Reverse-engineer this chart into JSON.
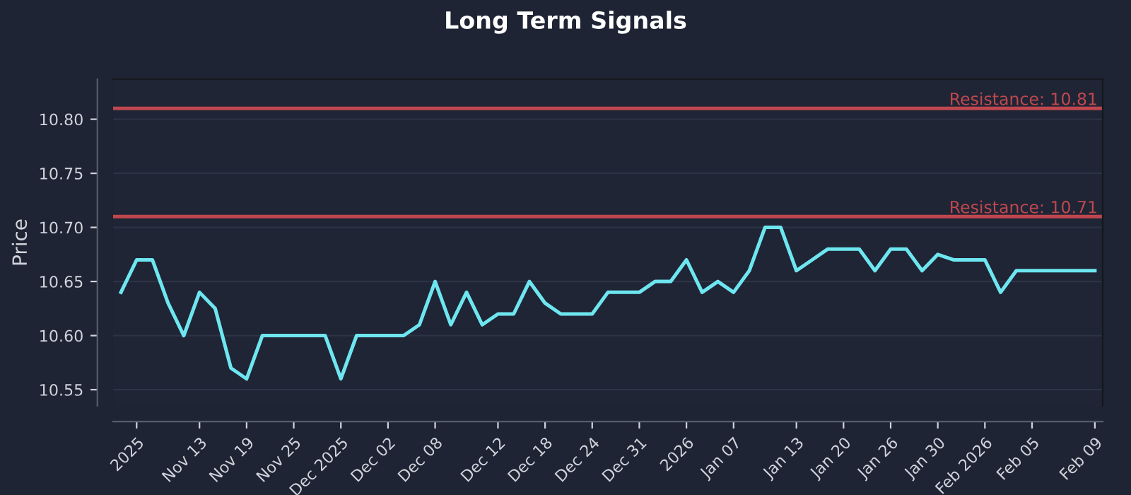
{
  "chart_data": {
    "type": "line",
    "title": "Long Term Signals",
    "ylabel": "Price",
    "categories": [
      null,
      "2025",
      null,
      null,
      null,
      "Nov 13",
      null,
      null,
      "Nov 19",
      null,
      null,
      "Nov 25",
      null,
      null,
      "Dec 2025",
      null,
      null,
      "Dec 02",
      null,
      null,
      "Dec 08",
      null,
      null,
      null,
      "Dec 12",
      null,
      null,
      "Dec 18",
      null,
      null,
      "Dec 24",
      null,
      null,
      "Dec 31",
      null,
      null,
      "2026",
      null,
      null,
      "Jan 07",
      null,
      null,
      null,
      "Jan 13",
      null,
      null,
      "Jan 20",
      null,
      null,
      "Jan 26",
      null,
      null,
      "Jan 30",
      null,
      null,
      "Feb 2026",
      null,
      null,
      "Feb 05",
      null,
      null,
      null,
      "Feb 09"
    ],
    "series": [
      {
        "color": "#6ee6f0",
        "values": [
          10.64,
          10.67,
          10.67,
          10.63,
          10.6,
          10.64,
          10.625,
          10.57,
          10.56,
          10.6,
          10.6,
          10.6,
          10.6,
          10.6,
          10.56,
          10.6,
          10.6,
          10.6,
          10.6,
          10.61,
          10.65,
          10.61,
          10.64,
          10.61,
          10.62,
          10.62,
          10.65,
          10.63,
          10.62,
          10.62,
          10.62,
          10.64,
          10.64,
          10.64,
          10.65,
          10.65,
          10.67,
          10.64,
          10.65,
          10.64,
          10.66,
          10.7,
          10.7,
          10.66,
          10.67,
          10.68,
          10.68,
          10.68,
          10.66,
          10.68,
          10.68,
          10.66,
          10.675,
          10.67,
          10.67,
          10.67,
          10.64,
          10.66,
          10.66,
          10.66,
          10.66,
          10.66,
          10.66
        ]
      }
    ],
    "ylim": [
      10.535,
      10.837
    ],
    "yticks": [
      10.55,
      {
        "value": 10.6,
        "label": "10.60"
      },
      10.65,
      {
        "value": 10.7,
        "label": "10.70"
      },
      10.75,
      {
        "value": 10.8,
        "label": "10.80"
      }
    ],
    "grid": "y",
    "legend": false,
    "marker": "none",
    "line_style": "solid",
    "ref_lines": [
      {
        "axis": "y",
        "value": 10.81,
        "label": "Resistance: 10.81",
        "color": "#c0474f"
      },
      {
        "axis": "y",
        "value": 10.71,
        "label": "Resistance: 10.71",
        "color": "#c0474f"
      }
    ]
  }
}
